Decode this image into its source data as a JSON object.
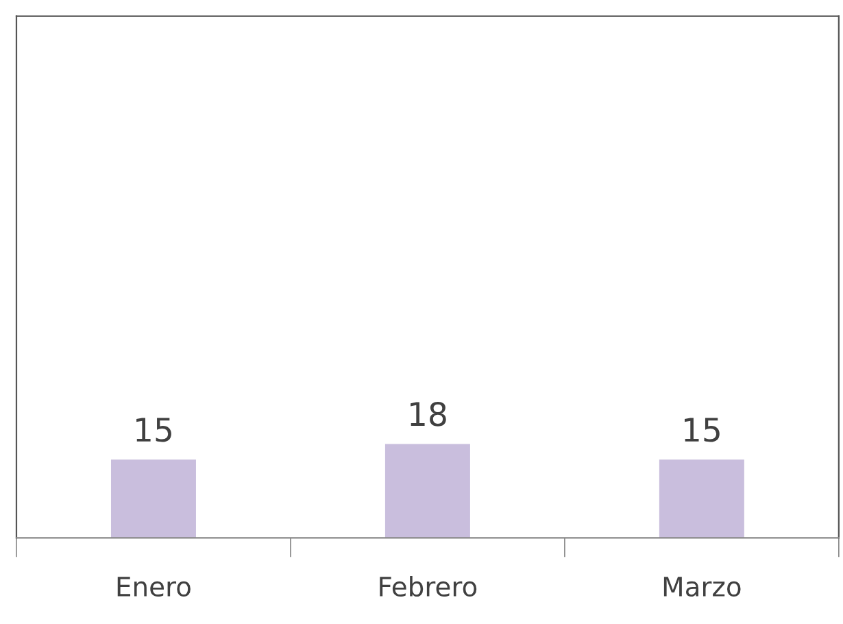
{
  "chart_data": {
    "type": "bar",
    "categories": [
      "Enero",
      "Febrero",
      "Marzo"
    ],
    "values": [
      15,
      18,
      15
    ],
    "color": "#c9bedd",
    "ylim": [
      0,
      100
    ],
    "data_labels": true,
    "tick_labels": "x",
    "grid": false,
    "legend": false
  }
}
